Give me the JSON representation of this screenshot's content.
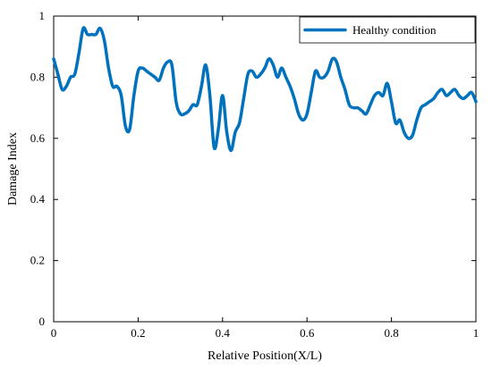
{
  "chart_data": {
    "type": "line",
    "title": "",
    "xlabel": "Relative Position(X/L)",
    "ylabel": "Damage Index",
    "xlim": [
      0,
      1
    ],
    "ylim": [
      0,
      1
    ],
    "xticks": [
      "0",
      "0.2",
      "0.4",
      "0.6",
      "0.8",
      "1"
    ],
    "yticks": [
      "0",
      "0.2",
      "0.4",
      "0.6",
      "0.8",
      "1"
    ],
    "grid": false,
    "legend_position": "top-right",
    "series": [
      {
        "name": "Healthy condition",
        "color": "#0072BD",
        "x": [
          0.0,
          0.01,
          0.02,
          0.03,
          0.04,
          0.05,
          0.06,
          0.07,
          0.08,
          0.09,
          0.1,
          0.11,
          0.12,
          0.13,
          0.14,
          0.15,
          0.16,
          0.17,
          0.18,
          0.19,
          0.2,
          0.21,
          0.22,
          0.23,
          0.24,
          0.25,
          0.26,
          0.27,
          0.28,
          0.29,
          0.3,
          0.31,
          0.32,
          0.33,
          0.34,
          0.35,
          0.36,
          0.37,
          0.38,
          0.39,
          0.4,
          0.41,
          0.42,
          0.43,
          0.44,
          0.45,
          0.46,
          0.47,
          0.48,
          0.49,
          0.5,
          0.51,
          0.52,
          0.53,
          0.54,
          0.55,
          0.56,
          0.57,
          0.58,
          0.59,
          0.6,
          0.61,
          0.62,
          0.63,
          0.64,
          0.65,
          0.66,
          0.67,
          0.68,
          0.69,
          0.7,
          0.71,
          0.72,
          0.73,
          0.74,
          0.75,
          0.76,
          0.77,
          0.78,
          0.79,
          0.8,
          0.81,
          0.82,
          0.83,
          0.84,
          0.85,
          0.86,
          0.87,
          0.88,
          0.89,
          0.9,
          0.91,
          0.92,
          0.93,
          0.94,
          0.95,
          0.96,
          0.97,
          0.98,
          0.99,
          1.0
        ],
        "y": [
          0.86,
          0.81,
          0.76,
          0.77,
          0.8,
          0.81,
          0.88,
          0.96,
          0.94,
          0.94,
          0.94,
          0.96,
          0.92,
          0.83,
          0.77,
          0.77,
          0.74,
          0.64,
          0.63,
          0.74,
          0.82,
          0.83,
          0.82,
          0.81,
          0.8,
          0.79,
          0.83,
          0.85,
          0.84,
          0.72,
          0.68,
          0.68,
          0.69,
          0.71,
          0.71,
          0.77,
          0.84,
          0.74,
          0.57,
          0.63,
          0.74,
          0.62,
          0.56,
          0.62,
          0.65,
          0.73,
          0.81,
          0.82,
          0.8,
          0.81,
          0.83,
          0.86,
          0.84,
          0.8,
          0.83,
          0.8,
          0.77,
          0.73,
          0.68,
          0.66,
          0.68,
          0.75,
          0.82,
          0.8,
          0.8,
          0.82,
          0.86,
          0.85,
          0.8,
          0.76,
          0.71,
          0.7,
          0.7,
          0.69,
          0.68,
          0.71,
          0.74,
          0.75,
          0.74,
          0.78,
          0.72,
          0.65,
          0.66,
          0.62,
          0.6,
          0.61,
          0.66,
          0.7,
          0.71,
          0.72,
          0.73,
          0.75,
          0.76,
          0.74,
          0.75,
          0.76,
          0.74,
          0.73,
          0.74,
          0.75,
          0.72
        ]
      }
    ]
  }
}
